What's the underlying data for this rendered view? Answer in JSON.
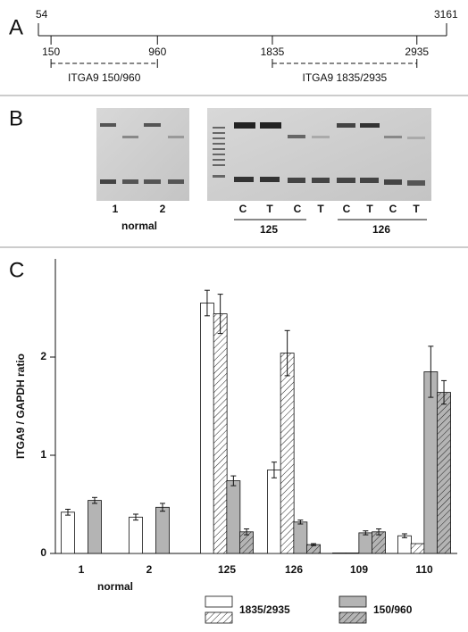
{
  "panel_a": {
    "label": "A",
    "start": 54,
    "end": 3161,
    "fragments": [
      {
        "name": "ITGA9 150/960",
        "from": 150,
        "to": 960
      },
      {
        "name": "ITGA9 1835/2935",
        "from": 1835,
        "to": 2935
      }
    ]
  },
  "panel_b": {
    "label": "B",
    "normal_lanes": [
      "1",
      "2"
    ],
    "normal_label": "normal",
    "lanes": [
      "C",
      "T",
      "C",
      "T",
      "C",
      "T",
      "C",
      "T"
    ],
    "groups": [
      "125",
      "126"
    ]
  },
  "chart_data": {
    "type": "bar",
    "label": "C",
    "y_label": "ITGA9 / GAPDH ratio",
    "categories": [
      "1",
      "2",
      "125",
      "126",
      "109",
      "110"
    ],
    "group_label": "normal",
    "ylim": [
      0,
      3
    ],
    "yticks": [
      0,
      1,
      2
    ],
    "series": [
      {
        "name": "1835/2935",
        "color": "#ffffff",
        "values": [
          0.42,
          0.37,
          2.55,
          0.85,
          0.005,
          0.18
        ],
        "errors": [
          0.03,
          0.03,
          0.13,
          0.08,
          null,
          0.02
        ]
      },
      {
        "color": "#ffffff",
        "pattern": "hatch",
        "values": [
          null,
          null,
          2.44,
          2.04,
          0.005,
          0.1
        ],
        "errors": [
          null,
          null,
          0.2,
          0.23,
          null,
          null
        ]
      },
      {
        "name": "150/960",
        "color": "#b4b4b4",
        "values": [
          0.54,
          0.47,
          0.74,
          0.32,
          0.21,
          1.85
        ],
        "errors": [
          0.03,
          0.04,
          0.05,
          0.02,
          0.02,
          0.26
        ]
      },
      {
        "color": "#b4b4b4",
        "pattern": "hatch",
        "values": [
          null,
          null,
          0.22,
          0.09,
          0.22,
          1.64
        ],
        "errors": [
          null,
          null,
          0.03,
          0.01,
          0.03,
          0.12
        ]
      }
    ]
  }
}
